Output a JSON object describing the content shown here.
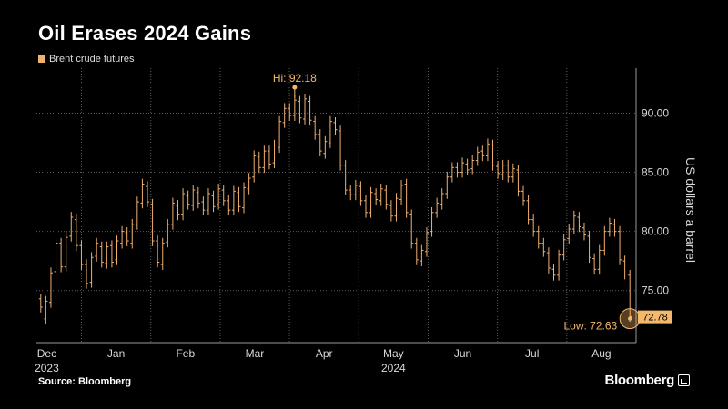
{
  "header": {
    "title": "Oil Erases 2024 Gains",
    "legend_label": "Brent crude futures"
  },
  "footer": {
    "source": "Source: Bloomberg",
    "brand": "Bloomberg"
  },
  "colors": {
    "background": "#000000",
    "series": "#f0b070",
    "grid": "#5a5a5a",
    "axis_text": "#d8d8d8",
    "highlight": "#f5b86a"
  },
  "chart_data": {
    "type": "ohlc",
    "ylabel": "US dollars a barrel",
    "ylim": [
      70.6,
      93.8
    ],
    "y_ticks": [
      {
        "value": 75,
        "label": "75.00"
      },
      {
        "value": 80,
        "label": "80.00"
      },
      {
        "value": 85,
        "label": "85.00"
      },
      {
        "value": 90,
        "label": "90.00"
      }
    ],
    "x_months": [
      "Dec",
      "Jan",
      "Feb",
      "Mar",
      "Apr",
      "May",
      "Jun",
      "Jul",
      "Aug"
    ],
    "x_year_labels": [
      {
        "month_index": 0,
        "label": "2023"
      },
      {
        "month_index": 5,
        "label": "2024"
      }
    ],
    "series": [
      {
        "name": "Brent crude futures",
        "points": [
          [
            1,
            74.3,
            73.6
          ],
          [
            2,
            72.6,
            74.1
          ],
          [
            3,
            74.0,
            76.5
          ],
          [
            4,
            76.6,
            79.0
          ],
          [
            5,
            79.0,
            77.0
          ],
          [
            6,
            77.0,
            79.5
          ],
          [
            7,
            79.6,
            81.2
          ],
          [
            8,
            81.0,
            78.8
          ],
          [
            9,
            78.8,
            77.2
          ],
          [
            10,
            77.2,
            75.6
          ],
          [
            11,
            75.7,
            77.8
          ],
          [
            12,
            77.9,
            79.0
          ],
          [
            13,
            78.7,
            77.4
          ],
          [
            14,
            77.3,
            78.7
          ],
          [
            15,
            78.8,
            77.4
          ],
          [
            16,
            77.6,
            79.2
          ],
          [
            17,
            79.0,
            80.0
          ],
          [
            18,
            79.9,
            79.2
          ],
          [
            19,
            79.0,
            80.6
          ],
          [
            20,
            80.6,
            82.5
          ],
          [
            21,
            82.4,
            84.0
          ],
          [
            22,
            83.8,
            82.5
          ],
          [
            23,
            82.3,
            79.2
          ],
          [
            24,
            79.2,
            77.4
          ],
          [
            25,
            77.2,
            79.0
          ],
          [
            26,
            79.1,
            80.6
          ],
          [
            27,
            80.6,
            82.4
          ],
          [
            28,
            82.2,
            81.4
          ],
          [
            29,
            81.4,
            83.2
          ],
          [
            30,
            83.0,
            82.3
          ],
          [
            31,
            82.2,
            83.5
          ],
          [
            32,
            83.3,
            82.4
          ],
          [
            33,
            82.5,
            81.8
          ],
          [
            34,
            81.8,
            83.2
          ],
          [
            35,
            83.0,
            82.1
          ],
          [
            36,
            82.3,
            83.6
          ],
          [
            37,
            83.5,
            82.6
          ],
          [
            38,
            82.6,
            81.8
          ],
          [
            39,
            81.8,
            83.4
          ],
          [
            40,
            83.3,
            82.1
          ],
          [
            41,
            82.0,
            83.7
          ],
          [
            42,
            83.6,
            84.5
          ],
          [
            43,
            84.6,
            86.4
          ],
          [
            44,
            86.3,
            85.4
          ],
          [
            45,
            85.4,
            86.8
          ],
          [
            46,
            86.8,
            85.7
          ],
          [
            47,
            85.8,
            87.3
          ],
          [
            48,
            87.1,
            89.3
          ],
          [
            49,
            89.2,
            90.4
          ],
          [
            50,
            90.4,
            89.8
          ],
          [
            51,
            89.8,
            91.1
          ],
          [
            52,
            91.0,
            89.6
          ],
          [
            53,
            89.5,
            91.2
          ],
          [
            54,
            91.0,
            89.4
          ],
          [
            55,
            89.3,
            88.2
          ],
          [
            56,
            88.2,
            86.8
          ],
          [
            57,
            86.6,
            87.6
          ],
          [
            58,
            87.5,
            89.3
          ],
          [
            59,
            89.2,
            88.6
          ],
          [
            60,
            88.5,
            85.6
          ],
          [
            61,
            85.6,
            83.5
          ],
          [
            62,
            83.5,
            83.1
          ],
          [
            63,
            83.1,
            83.9
          ],
          [
            64,
            83.8,
            82.6
          ],
          [
            65,
            82.6,
            81.6
          ],
          [
            66,
            81.6,
            83.3
          ],
          [
            67,
            83.2,
            82.7
          ],
          [
            68,
            82.6,
            83.6
          ],
          [
            69,
            83.5,
            82.3
          ],
          [
            70,
            82.2,
            81.3
          ],
          [
            71,
            81.3,
            82.8
          ],
          [
            72,
            82.7,
            83.9
          ],
          [
            73,
            84.0,
            81.6
          ],
          [
            74,
            81.4,
            79.0
          ],
          [
            75,
            79.0,
            77.6
          ],
          [
            76,
            77.5,
            78.4
          ],
          [
            77,
            78.3,
            79.9
          ],
          [
            78,
            80.0,
            81.6
          ],
          [
            79,
            81.6,
            82.4
          ],
          [
            80,
            82.3,
            83.2
          ],
          [
            81,
            83.2,
            84.6
          ],
          [
            82,
            84.6,
            85.4
          ],
          [
            83,
            85.4,
            85.0
          ],
          [
            84,
            85.0,
            85.8
          ],
          [
            85,
            85.7,
            85.2
          ],
          [
            86,
            85.3,
            86.0
          ],
          [
            87,
            86.0,
            86.7
          ],
          [
            88,
            86.8,
            86.4
          ],
          [
            89,
            86.4,
            87.4
          ],
          [
            90,
            87.3,
            85.6
          ],
          [
            91,
            85.5,
            84.9
          ],
          [
            92,
            84.8,
            85.6
          ],
          [
            93,
            85.6,
            84.6
          ],
          [
            94,
            84.6,
            85.3
          ],
          [
            95,
            85.2,
            83.4
          ],
          [
            96,
            83.4,
            82.6
          ],
          [
            97,
            82.6,
            81.0
          ],
          [
            98,
            81.0,
            80.0
          ],
          [
            99,
            80.0,
            79.0
          ],
          [
            100,
            79.0,
            78.3
          ],
          [
            101,
            78.2,
            76.9
          ],
          [
            102,
            76.8,
            76.3
          ],
          [
            103,
            76.3,
            78.0
          ],
          [
            104,
            78.0,
            79.3
          ],
          [
            105,
            79.4,
            80.2
          ],
          [
            106,
            80.2,
            81.3
          ],
          [
            107,
            81.2,
            80.4
          ],
          [
            108,
            80.3,
            79.7
          ],
          [
            109,
            79.6,
            77.8
          ],
          [
            110,
            77.7,
            76.8
          ],
          [
            111,
            76.8,
            78.4
          ],
          [
            112,
            78.4,
            80.0
          ],
          [
            113,
            80.0,
            80.7
          ],
          [
            114,
            80.6,
            80.0
          ],
          [
            115,
            80.0,
            77.6
          ],
          [
            116,
            77.5,
            76.4
          ],
          [
            117,
            76.3,
            72.8
          ]
        ]
      }
    ],
    "annotations": [
      {
        "label": "Hi: 92.18",
        "x_index": 51,
        "value": 92.18
      },
      {
        "label": "Low: 72.63",
        "x_index": 117,
        "value": 72.63
      }
    ],
    "last_value_label": "72.78",
    "last_value": 72.78
  }
}
